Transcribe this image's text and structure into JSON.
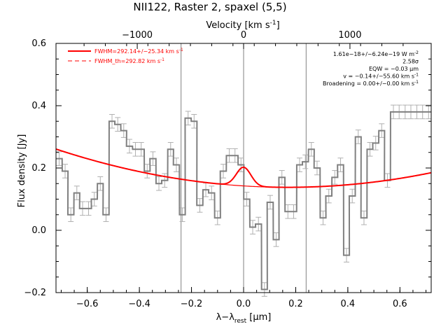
{
  "chart_data": {
    "type": "line",
    "title": "NII122, Raster 2, spaxel (5,5)",
    "xlabel": "λ−λ",
    "xlabel_sub": "rest",
    "xlabel_unit": " [μm]",
    "ylabel": "Flux density [Jy]",
    "top_axis_label": "Velocity [km s",
    "top_axis_label_sup": "-1",
    "top_axis_label_end": "]",
    "xlim": [
      -0.72,
      0.72
    ],
    "ylim": [
      -0.2,
      0.6
    ],
    "x_ticks": [
      -0.6,
      -0.4,
      -0.2,
      0.0,
      0.2,
      0.4,
      0.6
    ],
    "x_tick_labels": [
      "−0.6",
      "−0.4",
      "−0.2",
      "0.0",
      "0.2",
      "0.4",
      "0.6"
    ],
    "y_ticks": [
      -0.2,
      0.0,
      0.2,
      0.4,
      0.6
    ],
    "y_tick_labels": [
      "−0.2",
      "0.0",
      "0.2",
      "0.4",
      "0.6"
    ],
    "top_ticks_velocity": [
      -1000,
      0,
      1000
    ],
    "top_tick_labels": [
      "−1000",
      "0",
      "1000"
    ],
    "velocity_per_micron": 2450,
    "vertical_lines_x": [
      -0.24,
      0.0,
      0.24
    ],
    "legend": {
      "placement": "top-left",
      "entries": [
        {
          "label": "FWHM=292.14+/−25.34 km s",
          "sup": "-1",
          "style": "solid",
          "color": "#ff0000"
        },
        {
          "label": "FWHM_th=292.82 km s",
          "sup": "-1",
          "style": "dashed",
          "color": "#ff0000"
        }
      ]
    },
    "annotations": [
      {
        "text": "1.61e−18+/−6.24e−19 W m",
        "sup": "-2"
      },
      {
        "text": "2.58σ",
        "sup": ""
      },
      {
        "text": "EQW = −0.03 μm",
        "sup": ""
      },
      {
        "text": "v = −0.14+/−55.60 km s",
        "sup": "-1"
      },
      {
        "text": "Broadening = 0.00+/−0.00 km s",
        "sup": "-1"
      }
    ],
    "series": [
      {
        "style": "step",
        "color": "#808080",
        "x": [
          -0.708,
          -0.685,
          -0.663,
          -0.64,
          -0.618,
          -0.595,
          -0.573,
          -0.55,
          -0.528,
          -0.505,
          -0.483,
          -0.46,
          -0.438,
          -0.415,
          -0.393,
          -0.37,
          -0.348,
          -0.325,
          -0.303,
          -0.28,
          -0.258,
          -0.235,
          -0.213,
          -0.19,
          -0.168,
          -0.145,
          -0.123,
          -0.1,
          -0.078,
          -0.055,
          -0.033,
          -0.01,
          0.012,
          0.035,
          0.057,
          0.08,
          0.102,
          0.125,
          0.147,
          0.17,
          0.192,
          0.215,
          0.237,
          0.26,
          0.282,
          0.305,
          0.327,
          0.35,
          0.372,
          0.395,
          0.417,
          0.44,
          0.462,
          0.485,
          0.507,
          0.53,
          0.552,
          0.575,
          0.597,
          0.62,
          0.642,
          0.665,
          0.687,
          0.71
        ],
        "y": [
          0.23,
          0.19,
          0.05,
          0.12,
          0.07,
          0.07,
          0.1,
          0.15,
          0.05,
          0.35,
          0.34,
          0.32,
          0.27,
          0.26,
          0.26,
          0.19,
          0.23,
          0.15,
          0.16,
          0.26,
          0.21,
          0.05,
          0.36,
          0.35,
          0.08,
          0.13,
          0.12,
          0.04,
          0.19,
          0.24,
          0.24,
          0.21,
          0.1,
          0.01,
          0.02,
          -0.19,
          0.09,
          -0.03,
          0.17,
          0.06,
          0.06,
          0.21,
          0.22,
          0.26,
          0.2,
          0.04,
          0.11,
          0.17,
          0.21,
          -0.08,
          0.11,
          0.3,
          0.04,
          0.26,
          0.28,
          0.32,
          0.16,
          0.38,
          0.38,
          0.38,
          0.38,
          0.38,
          0.38,
          0.38
        ],
        "yerr": 0.022
      },
      {
        "name": "fit",
        "style": "line",
        "color": "#ff0000",
        "baseline": {
          "x0": 0.17,
          "a": 0.138,
          "b": 0.155
        },
        "gaussian": {
          "amp": 0.06,
          "center": 0.0,
          "sigma": 0.028
        }
      }
    ]
  }
}
